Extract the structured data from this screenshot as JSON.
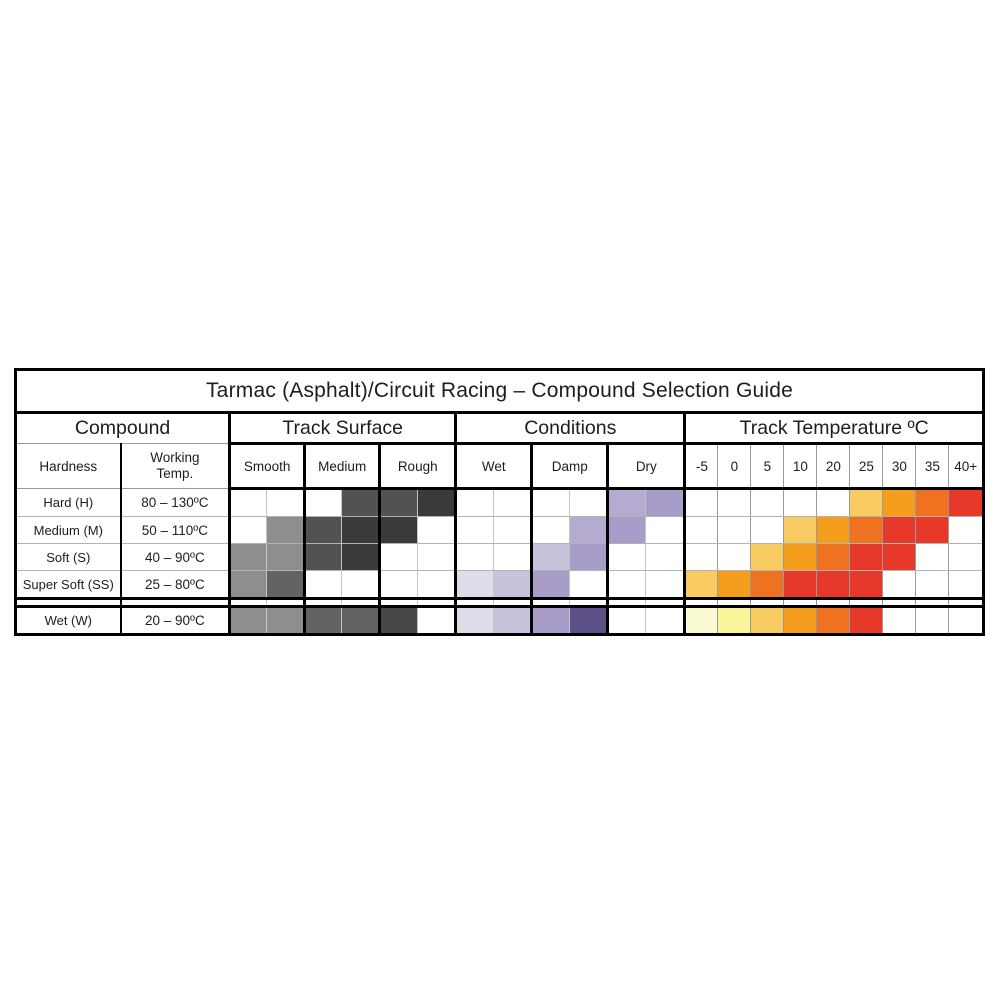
{
  "title": "Tarmac (Asphalt)/Circuit Racing – Compound Selection Guide",
  "groups": {
    "compound": "Compound",
    "track_surface": "Track Surface",
    "conditions": "Conditions",
    "track_temperature": "Track Temperature ºC"
  },
  "subheaders": {
    "hardness": "Hardness",
    "working_temp": "Working Temp.",
    "smooth": "Smooth",
    "medium": "Medium",
    "rough": "Rough",
    "wet": "Wet",
    "damp": "Damp",
    "dry": "Dry"
  },
  "chart_data": {
    "type": "heatmap",
    "title": "Tarmac (Asphalt)/Circuit Racing – Compound Selection Guide",
    "surface_columns": [
      "Smooth",
      "Medium",
      "Rough"
    ],
    "condition_columns": [
      "Wet",
      "Damp",
      "Dry"
    ],
    "temperature_columns": [
      "-5",
      "0",
      "5",
      "10",
      "20",
      "25",
      "30",
      "35",
      "40+"
    ],
    "palette": {
      "0": "#ffffff",
      "g1": "#8e8e8e",
      "g2": "#636363",
      "g3": "#525252",
      "g4": "#3a3a3a",
      "g5": "#474747",
      "p1": "#dfdbe9",
      "p2": "#c9c2dc",
      "p3": "#b5abd0",
      "p4": "#a79dc8",
      "p5": "#5d4f88",
      "y1": "#fafad2",
      "y2": "#f8f59b",
      "o1": "#f8cb63",
      "o2": "#f59d1d",
      "o3": "#ee7220",
      "r1": "#e7392a"
    },
    "rows": [
      {
        "hardness": "Hard (H)",
        "working_temp": "80 – 130ºC",
        "surface": [
          "0",
          "0",
          "0",
          "g3",
          "g3",
          "g4"
        ],
        "conditions": [
          "0",
          "0",
          "0",
          "0",
          "p3",
          "p4"
        ],
        "temperature": [
          "0",
          "0",
          "0",
          "0",
          "0",
          "o1",
          "o2",
          "o3",
          "r1"
        ]
      },
      {
        "hardness": "Medium (M)",
        "working_temp": "50 – 110ºC",
        "surface": [
          "0",
          "g1",
          "g3",
          "g4",
          "g4",
          "0"
        ],
        "conditions": [
          "0",
          "0",
          "0",
          "p3",
          "p4",
          "0"
        ],
        "temperature": [
          "0",
          "0",
          "0",
          "o1",
          "o2",
          "o3",
          "r1",
          "r1",
          "0"
        ]
      },
      {
        "hardness": "Soft (S)",
        "working_temp": "40 – 90ºC",
        "surface": [
          "g1",
          "g1",
          "g3",
          "g4",
          "0",
          "0"
        ],
        "conditions": [
          "0",
          "0",
          "p2",
          "p4",
          "0",
          "0"
        ],
        "temperature": [
          "0",
          "0",
          "o1",
          "o2",
          "o3",
          "r1",
          "r1",
          "0",
          "0"
        ]
      },
      {
        "hardness": "Super Soft (SS)",
        "working_temp": "25 – 80ºC",
        "surface": [
          "g1",
          "g2",
          "0",
          "0",
          "0",
          "0"
        ],
        "conditions": [
          "p1",
          "p2",
          "p4",
          "0",
          "0",
          "0"
        ],
        "temperature": [
          "o1",
          "o2",
          "o3",
          "r1",
          "r1",
          "r1",
          "0",
          "0",
          "0"
        ]
      }
    ],
    "wet_row": {
      "hardness": "Wet (W)",
      "working_temp": "20 – 90ºC",
      "surface": [
        "g1",
        "g1",
        "g2",
        "g2",
        "g5",
        "0"
      ],
      "conditions": [
        "p1",
        "p2",
        "p4",
        "p5",
        "0",
        "0"
      ],
      "temperature": [
        "y1",
        "y2",
        "o1",
        "o2",
        "o3",
        "r1",
        "0",
        "0",
        "0"
      ]
    }
  }
}
